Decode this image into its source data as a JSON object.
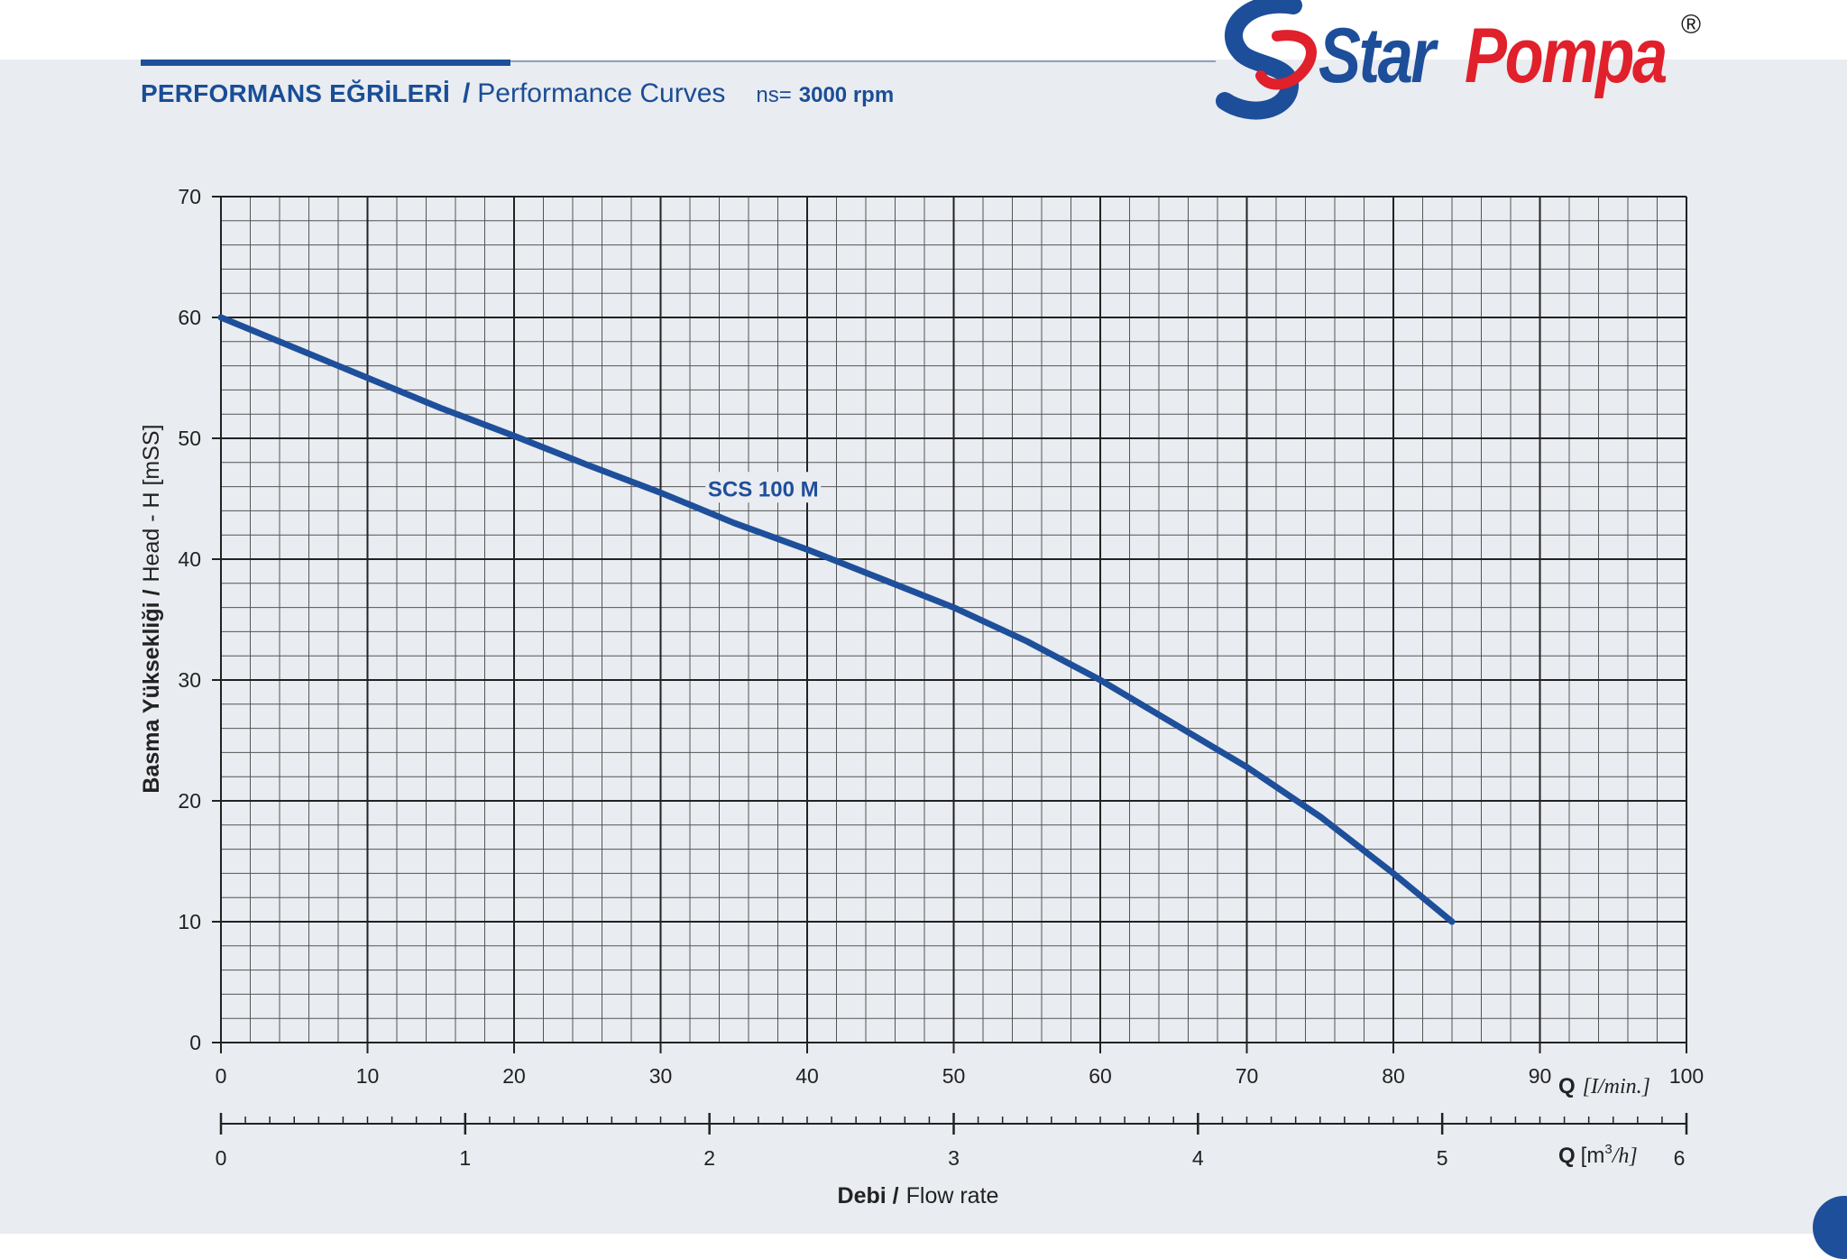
{
  "header": {
    "title_tr": "PERFORMANS EĞRİLERİ",
    "separator": "/",
    "title_en": "Performance Curves",
    "speed_label": "ns=",
    "speed_value": "3000 rpm"
  },
  "logo": {
    "text_star": "Star",
    "text_pompa": "Pompa",
    "registered": "®"
  },
  "colors": {
    "brand_blue": "#1e4f9b",
    "brand_red": "#e0202b",
    "curve": "#1e4f9b",
    "panel_bg": "#e9ecf0",
    "grid_major": "#222222",
    "grid_minor": "#555555"
  },
  "chart_data": {
    "type": "line",
    "xlim": [
      0,
      100
    ],
    "ylim": [
      0,
      70
    ],
    "x_ticks": [
      "0",
      "10",
      "20",
      "30",
      "40",
      "50",
      "60",
      "70",
      "80",
      "90",
      "100"
    ],
    "y_ticks": [
      "0",
      "10",
      "20",
      "30",
      "40",
      "50",
      "60",
      "70"
    ],
    "x_unit_label_bold": "Q",
    "x_unit_label_italic": "[I/min.]",
    "secondary_x": {
      "lim": [
        0,
        6
      ],
      "ticks": [
        "0",
        "1",
        "2",
        "3",
        "4",
        "5",
        "6"
      ],
      "label_bold": "Q",
      "label_unit": "[m",
      "label_sup": "3",
      "label_rest": "/h]"
    },
    "xlabel_bold": "Debi /",
    "xlabel_rest": "Flow rate",
    "ylabel_bold": "Basma Yüksekliği /",
    "ylabel_rest": "Head - H [mSS]",
    "grid": true,
    "series": [
      {
        "name": "SCS 100 M",
        "x": [
          0,
          5,
          10,
          15,
          20,
          25,
          30,
          35,
          40,
          45,
          50,
          55,
          60,
          65,
          70,
          75,
          80,
          84
        ],
        "y": [
          60,
          57.5,
          55,
          52.5,
          50.2,
          47.8,
          45.5,
          43,
          40.8,
          38.4,
          36,
          33.2,
          30,
          26.4,
          22.8,
          18.7,
          14,
          10
        ]
      }
    ],
    "series_label_position": {
      "x": 37,
      "y": 45.8
    }
  }
}
